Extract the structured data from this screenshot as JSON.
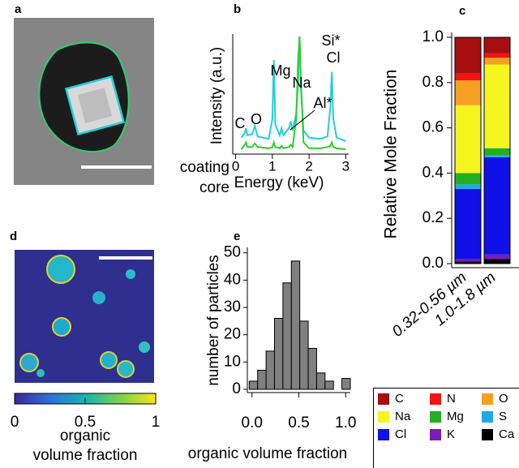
{
  "chart_data": [
    {
      "type": "image",
      "label": "a"
    },
    {
      "type": "line",
      "label": "b",
      "x": [
        0.15,
        0.25,
        0.28,
        0.32,
        0.45,
        0.52,
        0.6,
        0.9,
        1.0,
        1.04,
        1.08,
        1.2,
        1.25,
        1.3,
        1.45,
        1.5,
        1.55,
        1.65,
        1.7,
        1.74,
        1.78,
        1.85,
        2.0,
        2.3,
        2.5,
        2.58,
        2.62,
        2.66,
        2.75,
        3.0
      ],
      "series": [
        {
          "name": "coating",
          "color": "#2ccf2c",
          "values": [
            4,
            8,
            10,
            6,
            6,
            9,
            6,
            5,
            6,
            10,
            6,
            5,
            7,
            5,
            6,
            8,
            6,
            30,
            80,
            100,
            60,
            10,
            5,
            5,
            6,
            7,
            10,
            6,
            5,
            4
          ]
        },
        {
          "name": "core",
          "color": "#1fd0d8",
          "values": [
            14,
            18,
            22,
            16,
            17,
            24,
            15,
            13,
            30,
            80,
            25,
            16,
            22,
            16,
            22,
            28,
            20,
            35,
            60,
            100,
            55,
            20,
            14,
            13,
            15,
            40,
            70,
            30,
            14,
            11
          ]
        }
      ],
      "xlim": [
        -0.08,
        3.08
      ],
      "xticks": [
        0,
        1,
        2,
        3
      ],
      "ylim": [
        0,
        100
      ],
      "xlabel": "Energy (keV)",
      "ylabel": "Intensity (a.u.)",
      "annotations": [
        "C",
        "O",
        "Na",
        "Mg",
        "Si*",
        "Cl",
        "Al*"
      ]
    },
    {
      "type": "bar",
      "stacked": true,
      "label": "c",
      "categories": [
        "0.32-0.56 µm",
        "1.0-1.8 µm"
      ],
      "series": [
        {
          "name": "C",
          "color": "#a50f0f",
          "values": [
            0.16,
            0.07
          ]
        },
        {
          "name": "N",
          "color": "#f01414",
          "values": [
            0.03,
            0.02
          ]
        },
        {
          "name": "O",
          "color": "#f5a020",
          "values": [
            0.11,
            0.03
          ]
        },
        {
          "name": "Na",
          "color": "#f5f520",
          "values": [
            0.3,
            0.37
          ]
        },
        {
          "name": "Mg",
          "color": "#22b022",
          "values": [
            0.05,
            0.03
          ]
        },
        {
          "name": "S",
          "color": "#20a8e8",
          "values": [
            0.02,
            0.01
          ]
        },
        {
          "name": "Cl",
          "color": "#1010e8",
          "values": [
            0.31,
            0.43
          ]
        },
        {
          "name": "K",
          "color": "#7a1ab8",
          "values": [
            0.01,
            0.02
          ]
        },
        {
          "name": "Ca",
          "color": "#000000",
          "values": [
            0.01,
            0.02
          ]
        }
      ],
      "ylim": [
        0,
        1
      ],
      "yticks": [
        {
          "value": 0,
          "label": "0.0"
        },
        {
          "value": 0.2,
          "label": "0.2"
        },
        {
          "value": 0.4,
          "label": "0.4"
        },
        {
          "value": 0.6,
          "label": "0.6"
        },
        {
          "value": 0.8,
          "label": "0.8"
        },
        {
          "value": 1,
          "label": "1.0"
        }
      ],
      "ylabel": "Relative Mole Fraction",
      "legend": "bottom"
    },
    {
      "type": "colorbar",
      "label": "d",
      "xlim": [
        0,
        1
      ],
      "xticks": [
        0,
        0.5,
        1
      ],
      "xlabel": "organic\nvolume fraction"
    },
    {
      "type": "histogram",
      "label": "e",
      "bins": [
        -0.03,
        0.06,
        0.15,
        0.24,
        0.33,
        0.42,
        0.51,
        0.6,
        0.69,
        0.78,
        0.87,
        0.96,
        1.05
      ],
      "values": [
        3,
        7,
        14,
        26,
        39,
        47,
        25,
        15,
        6,
        3,
        0,
        4
      ],
      "color": "#808080",
      "xlim": [
        -0.05,
        1.05
      ],
      "xticks": [
        {
          "value": 0,
          "label": "0.0"
        },
        {
          "value": 0.5,
          "label": "0.5"
        },
        {
          "value": 1,
          "label": "1.0"
        }
      ],
      "ylim": [
        0,
        52
      ],
      "yticks": [
        0,
        10,
        20,
        30,
        40,
        50
      ],
      "xlabel": "organic volume fraction",
      "ylabel": "number of particles"
    }
  ]
}
